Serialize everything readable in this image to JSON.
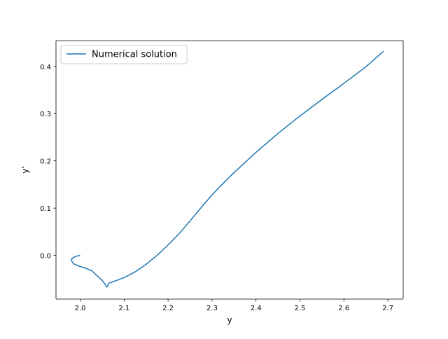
{
  "chart_data": {
    "type": "line",
    "title": "",
    "xlabel": "y",
    "ylabel": "y'",
    "xlim": [
      1.945,
      2.735
    ],
    "ylim": [
      -0.0925,
      0.4545
    ],
    "xticks": [
      2.0,
      2.1,
      2.2,
      2.3,
      2.4,
      2.5,
      2.6,
      2.7
    ],
    "xtick_labels": [
      "2.0",
      "2.1",
      "2.2",
      "2.3",
      "2.4",
      "2.5",
      "2.6",
      "2.7"
    ],
    "yticks": [
      0.0,
      0.1,
      0.2,
      0.3,
      0.4
    ],
    "ytick_labels": [
      "0.0",
      "0.1",
      "0.2",
      "0.3",
      "0.4"
    ],
    "grid": false,
    "legend": {
      "placement": "top-left",
      "entries": [
        "Numerical solution"
      ]
    },
    "series": [
      {
        "name": "Numerical solution",
        "color": "#1f77b4",
        "x": [
          2.0,
          1.99,
          1.982,
          1.98,
          1.985,
          1.998,
          2.015,
          2.027,
          2.035,
          2.043,
          2.05,
          2.056,
          2.06,
          2.061,
          2.065,
          2.08,
          2.1,
          2.125,
          2.15,
          2.175,
          2.2,
          2.225,
          2.25,
          2.275,
          2.3,
          2.325,
          2.35,
          2.4,
          2.45,
          2.5,
          2.55,
          2.6,
          2.65,
          2.69
        ],
        "y": [
          0.0,
          -0.002,
          -0.006,
          -0.011,
          -0.018,
          -0.023,
          -0.028,
          -0.033,
          -0.04,
          -0.047,
          -0.053,
          -0.06,
          -0.066,
          -0.067,
          -0.059,
          -0.054,
          -0.047,
          -0.035,
          -0.019,
          0.0,
          0.022,
          0.046,
          0.073,
          0.101,
          0.128,
          0.152,
          0.175,
          0.218,
          0.258,
          0.295,
          0.33,
          0.364,
          0.399,
          0.432
        ]
      }
    ]
  }
}
